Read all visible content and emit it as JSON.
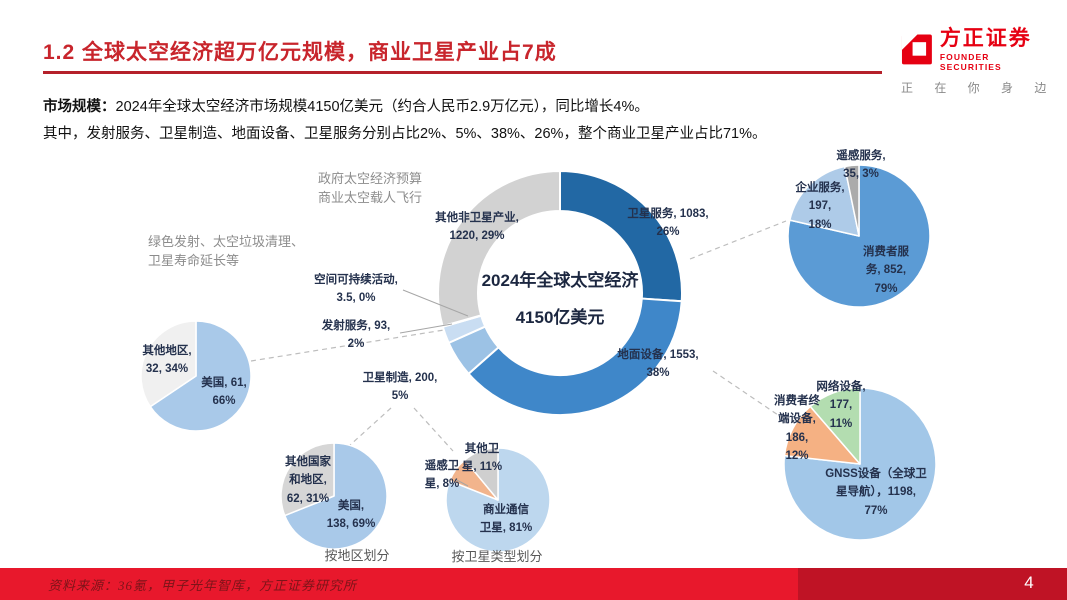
{
  "header": {
    "title": "1.2 全球太空经济超万亿元规模，商业卫星产业占7成"
  },
  "logo": {
    "name_cn": "方正证券",
    "name_en": "FOUNDER SECURITIES",
    "tagline": "正 在 你 身 边",
    "brand_red": "#e60012"
  },
  "intro": {
    "line1_bold": "市场规模：",
    "line1_rest": "2024年全球太空经济市场规模4150亿美元（约合人民币2.9万亿元），同比增长4%。",
    "line2": "其中，发射服务、卫星制造、地面设备、卫星服务分别占比2%、5%、38%、26%，整个商业卫星产业占比71%。"
  },
  "chart_data": [
    {
      "id": "space-economy-donut",
      "type": "donut",
      "title": "2024年全球太空经济",
      "subtitle": "4150亿美元",
      "unit": "亿美元",
      "segments": [
        {
          "label": "卫星服务",
          "value": 1083,
          "pct": "26%",
          "color": "#2268a4"
        },
        {
          "label": "地面设备",
          "value": 1553,
          "pct": "38%",
          "color": "#3f87c9"
        },
        {
          "label": "卫星制造",
          "value": 200,
          "pct": "5%",
          "color": "#9cc2e5"
        },
        {
          "label": "发射服务",
          "value": 93,
          "pct": "2%",
          "color": "#c9ddf2"
        },
        {
          "label": "空间可持续活动",
          "value": 3.5,
          "pct": "0%",
          "color": "#eef4fb"
        },
        {
          "label": "其他非卫星产业",
          "value": 1220,
          "pct": "29%",
          "color": "#d2d2d2"
        }
      ]
    },
    {
      "id": "launch-by-region",
      "type": "pie",
      "parent": "发射服务",
      "segments": [
        {
          "label": "美国",
          "value": 61,
          "pct": "66%",
          "color": "#a9c9e9"
        },
        {
          "label": "其他地区",
          "value": 32,
          "pct": "34%",
          "color": "#f0f0f0"
        }
      ]
    },
    {
      "id": "satellite-services-split",
      "type": "pie",
      "parent": "卫星服务",
      "segments": [
        {
          "label": "消费者服务",
          "value": 852,
          "pct": "79%",
          "color": "#5b9bd5"
        },
        {
          "label": "企业服务",
          "value": 197,
          "pct": "18%",
          "color": "#aecbe8"
        },
        {
          "label": "遥感服务",
          "value": 35,
          "pct": "3%",
          "color": "#ababab"
        }
      ]
    },
    {
      "id": "ground-equipment-split",
      "type": "pie",
      "parent": "地面设备",
      "segments": [
        {
          "label": "GNSS设备（全球卫星导航）",
          "value": 1198,
          "pct": "77%",
          "color": "#a2c7e8"
        },
        {
          "label": "消费者终端设备",
          "value": 186,
          "pct": "12%",
          "color": "#f5b183"
        },
        {
          "label": "网络设备",
          "value": 177,
          "pct": "11%",
          "color": "#b3ddb0"
        }
      ]
    },
    {
      "id": "manufacturing-by-region",
      "type": "pie",
      "parent": "卫星制造",
      "caption": "按地区划分",
      "segments": [
        {
          "label": "美国",
          "value": 138,
          "pct": "69%",
          "color": "#a9c9e9"
        },
        {
          "label": "其他国家和地区",
          "value": 62,
          "pct": "31%",
          "color": "#d6d6d6"
        }
      ]
    },
    {
      "id": "manufacturing-by-type",
      "type": "pie",
      "parent": "卫星制造",
      "caption": "按卫星类型划分",
      "segments": [
        {
          "label": "商业通信卫星",
          "value": 81,
          "pct": "81%",
          "color": "#bdd7ee"
        },
        {
          "label": "遥感卫星",
          "value": 8,
          "pct": "8%",
          "color": "#f2b48c"
        },
        {
          "label": "其他卫星",
          "value": 11,
          "pct": "11%",
          "color": "#cfcfcf"
        }
      ]
    }
  ],
  "labels": {
    "donut_center": "2024年全球太空经济\n4150亿美元",
    "seg_satellite_services": "卫星服务, 1083,\n26%",
    "seg_ground_equipment": "地面设备, 1553,\n38%",
    "seg_satellite_manufacturing": "卫星制造, 200,\n5%",
    "seg_launch_services": "发射服务, 93,\n2%",
    "seg_space_sustainability": "空间可持续活动,\n3.5, 0%",
    "seg_other_non_satellite": "其他非卫星产业,\n1220, 29%",
    "ann_gov": "政府太空经济预算\n商业太空载人飞行",
    "ann_green": "绿色发射、太空垃圾清理、\n卫星寿命延长等",
    "pie_launch_us": "美国, 61,\n66%",
    "pie_launch_other": "其他地区,\n32, 34%",
    "pie_services_consumer": "消费者服\n务, 852,\n79%",
    "pie_services_enterprise": "企业服务,\n197,\n18%",
    "pie_services_remote": "遥感服务,\n35, 3%",
    "pie_ground_gnss": "GNSS设备（全球卫\n星导航），1198,\n77%",
    "pie_ground_consumer": "消费者终\n端设备,\n186,\n12%",
    "pie_ground_network": "网络设备,\n177,\n11%",
    "pie_mfg_region_us": "美国,\n138, 69%",
    "pie_mfg_region_other": "其他国家\n和地区,\n62, 31%",
    "pie_mfg_type_comm": "商业通信\n卫星, 81%",
    "pie_mfg_type_remote": "遥感卫\n星, 8%",
    "pie_mfg_type_other": "其他卫\n星, 11%",
    "caption_by_region": "按地区划分",
    "caption_by_type": "按卫星类型划分"
  },
  "footer": {
    "source": "资料来源：36氪，甲子光年智库，方正证券研究所",
    "page": "4",
    "bar_red": "#e8182c",
    "bar_dark_red": "#bf1325"
  }
}
